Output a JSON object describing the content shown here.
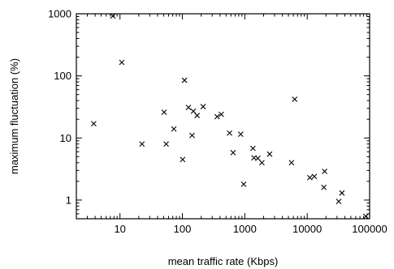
{
  "chart_data": {
    "type": "scatter",
    "title": "",
    "xlabel": "mean traffic rate (Kbps)",
    "ylabel": "maximum fluctuation (%)",
    "xscale": "log",
    "yscale": "log",
    "xlim": [
      2,
      100000
    ],
    "ylim": [
      0.5,
      1000
    ],
    "xticks": [
      10,
      100,
      1000,
      10000,
      100000
    ],
    "xtick_labels": [
      "10",
      "100",
      "1000",
      "10000",
      "100000"
    ],
    "yticks": [
      1,
      10,
      100,
      1000
    ],
    "ytick_labels": [
      "1",
      "10",
      "100",
      "1000"
    ],
    "grid": false,
    "marker": "x",
    "color": "#000000",
    "series": [
      {
        "points": [
          {
            "x": 3.8,
            "y": 17
          },
          {
            "x": 7.7,
            "y": 920
          },
          {
            "x": 10.7,
            "y": 165
          },
          {
            "x": 22.5,
            "y": 8
          },
          {
            "x": 51,
            "y": 26
          },
          {
            "x": 55,
            "y": 8
          },
          {
            "x": 73,
            "y": 14
          },
          {
            "x": 101,
            "y": 4.5
          },
          {
            "x": 108,
            "y": 85
          },
          {
            "x": 125,
            "y": 31
          },
          {
            "x": 143,
            "y": 11
          },
          {
            "x": 150,
            "y": 27
          },
          {
            "x": 172,
            "y": 23
          },
          {
            "x": 215,
            "y": 32
          },
          {
            "x": 360,
            "y": 22
          },
          {
            "x": 420,
            "y": 24
          },
          {
            "x": 570,
            "y": 12
          },
          {
            "x": 650,
            "y": 5.8
          },
          {
            "x": 860,
            "y": 11.5
          },
          {
            "x": 960,
            "y": 1.8
          },
          {
            "x": 1350,
            "y": 6.8
          },
          {
            "x": 1400,
            "y": 4.8
          },
          {
            "x": 1620,
            "y": 4.7
          },
          {
            "x": 1880,
            "y": 4
          },
          {
            "x": 2500,
            "y": 5.5
          },
          {
            "x": 5600,
            "y": 4
          },
          {
            "x": 6300,
            "y": 42
          },
          {
            "x": 11000,
            "y": 2.3
          },
          {
            "x": 13000,
            "y": 2.4
          },
          {
            "x": 18500,
            "y": 1.6
          },
          {
            "x": 19000,
            "y": 2.9
          },
          {
            "x": 32000,
            "y": 0.95
          },
          {
            "x": 36000,
            "y": 1.3
          },
          {
            "x": 87000,
            "y": 0.55
          }
        ]
      }
    ]
  }
}
